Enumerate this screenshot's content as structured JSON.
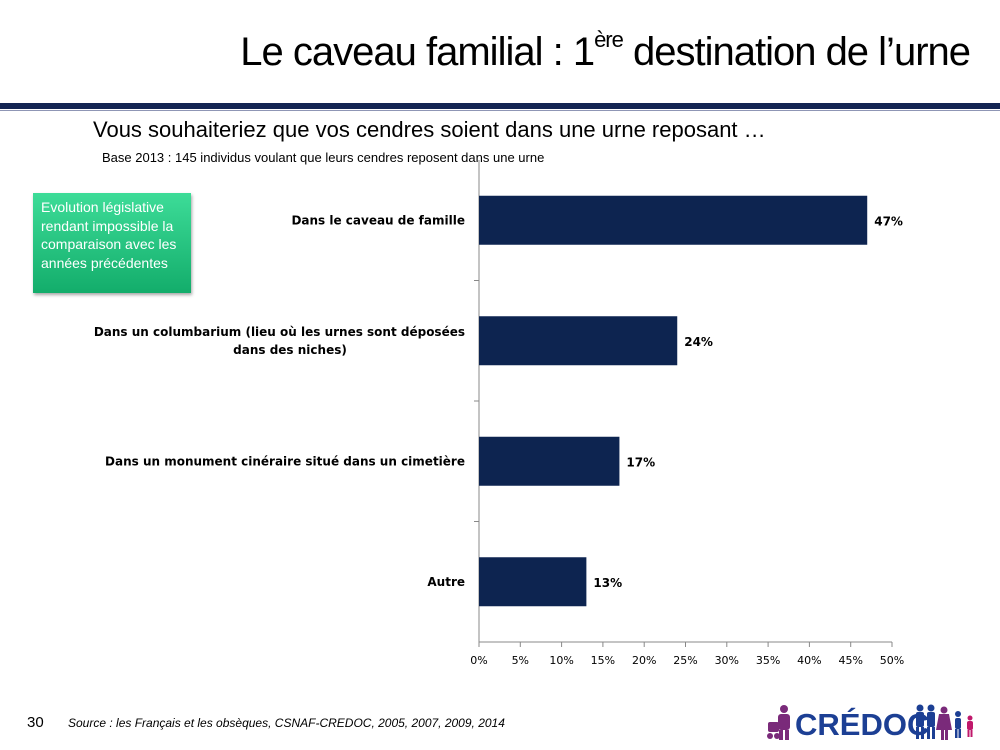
{
  "header": {
    "title_main": "Le caveau familial : 1",
    "title_sup": "ère",
    "title_rest": " destination de l’urne"
  },
  "question": "Vous souhaiteriez que vos cendres soient dans une urne reposant …",
  "base_note": "Base 2013 : 145  individus voulant que leurs cendres reposent dans une urne",
  "callout": "Evolution législative rendant impossible la comparaison avec les années précédentes",
  "footer": {
    "page_number": "30",
    "source": "Source : les Français et les obsèques, CSNAF-CREDOC, 2005, 2007, 2009, 2014"
  },
  "logo": {
    "text": "CRÉDOC"
  },
  "colors": {
    "bar": "#0d2450",
    "header_rule": "#142553",
    "callout": "#1fc47f",
    "logo_purple": "#7a2a7a",
    "logo_blue": "#1c3f94"
  },
  "chart_data": {
    "type": "bar",
    "orientation": "horizontal",
    "categories": [
      [
        "Dans le caveau de famille"
      ],
      [
        "Dans un columbarium (lieu où les urnes sont déposées",
        "dans des niches)"
      ],
      [
        "Dans un monument cinéraire situé dans un cimetière"
      ],
      [
        "Autre"
      ]
    ],
    "values": [
      47,
      24,
      17,
      13
    ],
    "value_labels": [
      "47%",
      "24%",
      "17%",
      "13%"
    ],
    "xlim": [
      0,
      50
    ],
    "ticks": [
      0,
      5,
      10,
      15,
      20,
      25,
      30,
      35,
      40,
      45,
      50
    ],
    "tick_labels": [
      "0%",
      "5%",
      "10%",
      "15%",
      "20%",
      "25%",
      "30%",
      "35%",
      "40%",
      "45%",
      "50%"
    ],
    "grid": false
  }
}
